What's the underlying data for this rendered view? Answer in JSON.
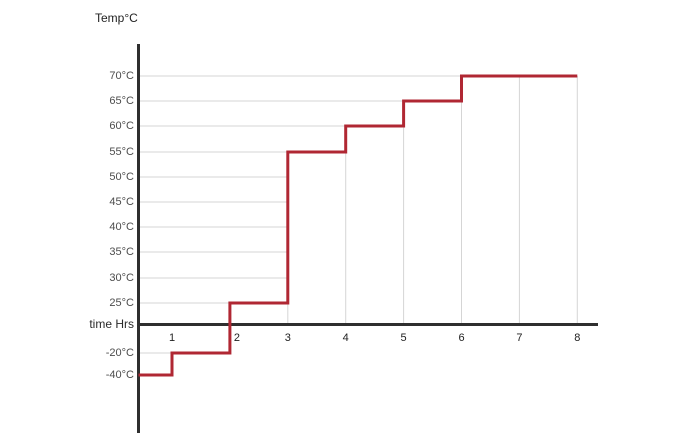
{
  "page": {
    "background": "#ffffff"
  },
  "chart_data": {
    "type": "line",
    "step": "after",
    "title": "",
    "ylabel": "Temp°C",
    "xlabel": "time Hrs",
    "x": [
      0,
      1,
      2,
      3,
      4,
      5,
      6,
      8
    ],
    "y": [
      -40,
      -20,
      25,
      55,
      60,
      65,
      70,
      70
    ],
    "x_tick_labels": [
      "1",
      "2",
      "3",
      "4",
      "5",
      "6",
      "7",
      "8"
    ],
    "x_tick_values": [
      1,
      2,
      3,
      4,
      5,
      6,
      7,
      8
    ],
    "y_tick_labels": [
      "70°C",
      "65°C",
      "60°C",
      "55°C",
      "50°C",
      "45°C",
      "40°C",
      "35°C",
      "30°C",
      "25°C",
      "-20°C",
      "-40°C"
    ],
    "y_tick_values": [
      70,
      65,
      60,
      55,
      50,
      45,
      40,
      35,
      30,
      25,
      -20,
      -40
    ],
    "xlim": [
      0,
      8
    ],
    "grid": "gridline segments stop at the step curve",
    "legend": false,
    "colors": {
      "curve": "#b02733",
      "axis": "#2f2f2f",
      "gridline": "#d5d5d5",
      "y_tick_label": "#4d4d4d",
      "x_tick_label": "#212121",
      "axis_title": "#1f1f1f"
    },
    "note": "y scale below 25°C is compressed (not to scale); curve starts at the y-axis at -40°C"
  }
}
